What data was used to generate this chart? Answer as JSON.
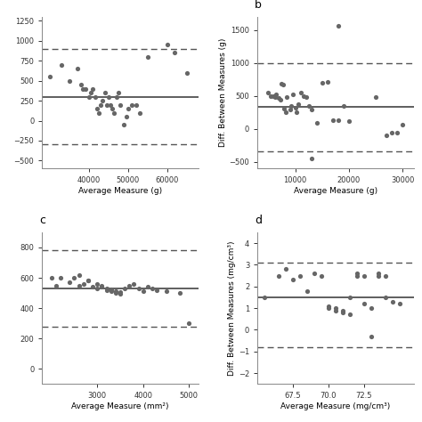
{
  "panel_a": {
    "label": "",
    "x": [
      30000,
      33000,
      35000,
      37000,
      38000,
      38500,
      39000,
      40000,
      40500,
      41000,
      41500,
      42000,
      42500,
      43000,
      43500,
      44000,
      44500,
      45000,
      45500,
      46000,
      46500,
      47000,
      47500,
      48000,
      49000,
      49500,
      50000,
      51000,
      52000,
      53000,
      55000,
      60000,
      62000,
      65000
    ],
    "y": [
      550,
      700,
      500,
      650,
      450,
      400,
      400,
      300,
      350,
      400,
      300,
      150,
      100,
      200,
      250,
      350,
      200,
      300,
      200,
      150,
      100,
      300,
      350,
      200,
      -50,
      50,
      150,
      200,
      200,
      100,
      800,
      950,
      850,
      600
    ],
    "mean_line": 300,
    "upper_loa": 900,
    "lower_loa": -300,
    "xlabel": "Average Measure (g)",
    "ylabel": "",
    "xlim": [
      28000,
      68000
    ],
    "ylim": [
      -600,
      1300
    ],
    "xticks": [
      40000,
      50000,
      60000
    ],
    "show_ylabel": false
  },
  "panel_b": {
    "label": "b",
    "x": [
      5000,
      5500,
      6000,
      6200,
      6500,
      7000,
      7200,
      7500,
      7800,
      8000,
      8200,
      8500,
      9000,
      9200,
      9500,
      10000,
      10200,
      10500,
      11000,
      11500,
      12000,
      12500,
      13000,
      14000,
      15000,
      16000,
      17000,
      18000,
      19000,
      20000,
      25000,
      27000,
      28000,
      29000,
      30000
    ],
    "y": [
      550,
      500,
      500,
      480,
      530,
      470,
      450,
      690,
      670,
      310,
      250,
      480,
      300,
      350,
      530,
      320,
      250,
      380,
      550,
      500,
      480,
      350,
      300,
      100,
      700,
      720,
      130,
      130,
      350,
      120,
      490,
      -90,
      -60,
      -60,
      60
    ],
    "extra_points_x": [
      18000,
      13000
    ],
    "extra_points_y": [
      1560,
      -450
    ],
    "mean_line": 330,
    "upper_loa": 1000,
    "lower_loa": -340,
    "xlabel": "Average Measure (g)",
    "ylabel": "Diff. Between Measures (g)",
    "xlim": [
      3000,
      32000
    ],
    "ylim": [
      -600,
      1700
    ],
    "xticks": [
      10000,
      20000,
      30000
    ],
    "show_ylabel": true
  },
  "panel_c": {
    "label": "c",
    "x": [
      2000,
      2100,
      2200,
      2400,
      2500,
      2600,
      2600,
      2700,
      2800,
      2800,
      2900,
      3000,
      3000,
      3100,
      3100,
      3200,
      3200,
      3300,
      3300,
      3400,
      3400,
      3500,
      3500,
      3600,
      3700,
      3800,
      3900,
      4000,
      4100,
      4200,
      4300,
      4500,
      4800,
      5000
    ],
    "y": [
      600,
      550,
      600,
      570,
      600,
      550,
      620,
      560,
      580,
      580,
      540,
      530,
      560,
      550,
      540,
      520,
      530,
      510,
      525,
      500,
      515,
      495,
      505,
      530,
      545,
      560,
      530,
      510,
      540,
      530,
      520,
      515,
      500,
      300
    ],
    "mean_line": 530,
    "upper_loa": 780,
    "lower_loa": 280,
    "xlabel": "Average Measure (mm²)",
    "ylabel": "",
    "xlim": [
      1800,
      5200
    ],
    "ylim": [
      -100,
      900
    ],
    "xticks": [
      3000,
      4000,
      5000
    ],
    "show_ylabel": false
  },
  "panel_d": {
    "label": "d",
    "x": [
      65.5,
      66.5,
      67.0,
      67.5,
      68.0,
      68.5,
      69.0,
      69.5,
      70.0,
      70.0,
      70.5,
      70.5,
      71.0,
      71.0,
      71.5,
      71.5,
      72.0,
      72.0,
      72.5,
      72.5,
      73.0,
      73.0,
      73.5,
      73.5,
      74.0,
      74.0,
      74.5,
      75.0
    ],
    "y": [
      1.5,
      2.5,
      2.8,
      2.3,
      2.5,
      1.8,
      2.6,
      2.5,
      1.0,
      1.1,
      0.9,
      1.0,
      0.8,
      0.9,
      0.7,
      1.5,
      2.5,
      2.6,
      2.5,
      1.2,
      1.0,
      -0.3,
      2.5,
      2.6,
      2.5,
      1.5,
      1.3,
      1.2
    ],
    "mean_line": 1.5,
    "upper_loa": 3.1,
    "lower_loa": -0.8,
    "xlabel": "Average Measure (mg/cm³)",
    "ylabel": "Diff. Between Measures (mg/cm³)",
    "xlim": [
      65.0,
      76.0
    ],
    "ylim": [
      -2.5,
      4.5
    ],
    "xticks": [
      67.5,
      70.0,
      72.5
    ],
    "show_ylabel": true
  },
  "dot_color": "#666666",
  "dot_size": 14,
  "line_color": "#333333",
  "dashed_color": "#555555",
  "bg_color": "#ffffff",
  "label_fontsize": 9,
  "tick_fontsize": 6,
  "axis_label_fontsize": 6.5
}
